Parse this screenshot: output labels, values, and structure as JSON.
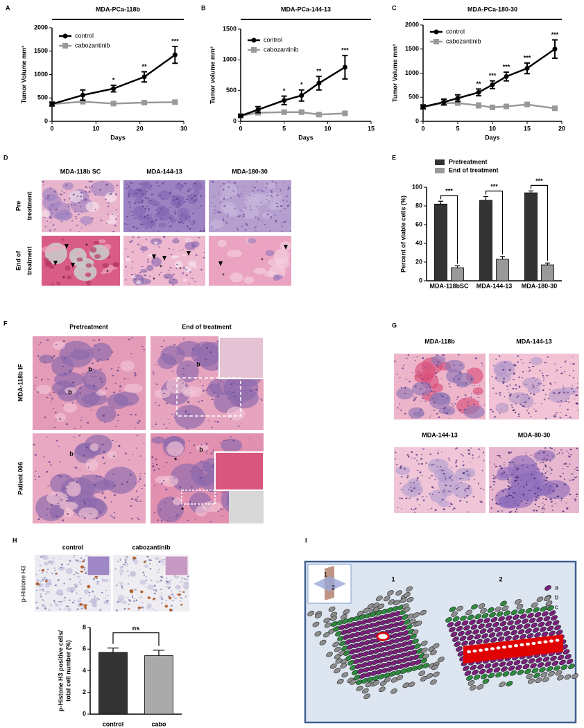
{
  "chart_data": [
    {
      "type": "line",
      "title": "MDA-PCa-118b",
      "xlabel": "Days",
      "ylabel": "Tumor Volume mm³",
      "x": [
        0,
        7,
        14,
        21,
        28
      ],
      "series": [
        {
          "name": "control",
          "color": "#000000",
          "marker": "circle",
          "values": [
            370,
            560,
            700,
            950,
            1420
          ],
          "errors": [
            40,
            110,
            70,
            110,
            180
          ]
        },
        {
          "name": "cabozantinib",
          "color": "#999999",
          "marker": "square",
          "values": [
            370,
            420,
            380,
            400,
            410
          ],
          "errors": [
            20,
            25,
            20,
            20,
            20
          ]
        }
      ],
      "annotations": [
        {
          "x": 14,
          "text": "*"
        },
        {
          "x": 21,
          "text": "**"
        },
        {
          "x": 28,
          "text": "***"
        }
      ],
      "xlim": [
        0,
        30
      ],
      "xticks": [
        0,
        10,
        20,
        30
      ],
      "ylim": [
        0,
        2000
      ],
      "yticks": [
        0,
        500,
        1000,
        1500,
        2000
      ],
      "legend": "upper left"
    },
    {
      "type": "line",
      "title": "MDA-PCa-144-13",
      "xlabel": "Days",
      "ylabel": "Tumor volume mm³",
      "x": [
        0,
        2,
        5,
        7,
        9,
        12
      ],
      "series": [
        {
          "name": "control",
          "color": "#000000",
          "marker": "circle",
          "values": [
            90,
            190,
            340,
            420,
            620,
            880
          ],
          "errors": [
            20,
            50,
            70,
            90,
            110,
            190
          ]
        },
        {
          "name": "cabozantinib",
          "color": "#999999",
          "marker": "square",
          "values": [
            90,
            140,
            150,
            150,
            110,
            130
          ],
          "errors": [
            15,
            20,
            20,
            20,
            25,
            20
          ]
        }
      ],
      "annotations": [
        {
          "x": 5,
          "text": "*"
        },
        {
          "x": 7,
          "text": "*"
        },
        {
          "x": 9,
          "text": "**"
        },
        {
          "x": 12,
          "text": "***"
        }
      ],
      "xlim": [
        0,
        15
      ],
      "xticks": [
        0,
        5,
        10,
        15
      ],
      "ylim": [
        0,
        1500
      ],
      "yticks": [
        0,
        500,
        1000,
        1500
      ],
      "legend": "upper left"
    },
    {
      "type": "line",
      "title": "MDA-PCa-180-30",
      "xlabel": "Days",
      "ylabel": "Tumor Volume mm³",
      "x": [
        0,
        3,
        5,
        8,
        10,
        12,
        15,
        19
      ],
      "series": [
        {
          "name": "control",
          "color": "#000000",
          "marker": "circle",
          "values": [
            300,
            400,
            480,
            600,
            760,
            930,
            1100,
            1500
          ],
          "errors": [
            40,
            60,
            70,
            70,
            80,
            90,
            110,
            190
          ]
        },
        {
          "name": "cabozantinib",
          "color": "#999999",
          "marker": "square",
          "values": [
            300,
            380,
            380,
            330,
            290,
            310,
            350,
            270
          ],
          "errors": [
            30,
            40,
            40,
            50,
            30,
            30,
            40,
            25
          ]
        }
      ],
      "annotations": [
        {
          "x": 8,
          "text": "**"
        },
        {
          "x": 10,
          "text": "***"
        },
        {
          "x": 12,
          "text": "***"
        },
        {
          "x": 15,
          "text": "***"
        },
        {
          "x": 19,
          "text": "***"
        }
      ],
      "xlim": [
        0,
        20
      ],
      "xticks": [
        0,
        5,
        10,
        15,
        20
      ],
      "ylim": [
        0,
        2000
      ],
      "yticks": [
        0,
        500,
        1000,
        1500,
        2000
      ],
      "legend": "upper left"
    },
    {
      "type": "bar",
      "ylabel": "Percent of viable cells (%)",
      "categories": [
        "MDA-118bSC",
        "MDA-144-13",
        "MDA-180-30"
      ],
      "series": [
        {
          "name": "Pretreatment",
          "color": "#333333",
          "values": [
            82,
            86,
            94
          ],
          "errors": [
            3,
            4,
            2
          ]
        },
        {
          "name": "End of treatment",
          "color": "#999999",
          "values": [
            14,
            23,
            17
          ],
          "errors": [
            2,
            3,
            2
          ]
        }
      ],
      "significance": [
        "***",
        "***",
        "***"
      ],
      "ylim": [
        0,
        100
      ],
      "yticks": [
        0,
        20,
        40,
        60,
        80,
        100
      ],
      "legend": "upper left"
    },
    {
      "type": "bar",
      "ylabel": [
        "p-Histone H3 positive cells/",
        "total cell number (%)"
      ],
      "categories": [
        "control",
        "cabo"
      ],
      "values": [
        5.7,
        5.4
      ],
      "errors": [
        0.4,
        0.5
      ],
      "colors": [
        "#333333",
        "#aaaaaa"
      ],
      "significance": [
        "ns"
      ],
      "ylim": [
        0,
        8
      ],
      "yticks": [
        0,
        2,
        4,
        6,
        8
      ]
    }
  ],
  "panel_letters": [
    "A",
    "B",
    "C",
    "D",
    "E",
    "F",
    "G",
    "H",
    "I"
  ],
  "panel_d": {
    "columns": [
      "MDA-118b SC",
      "MDA-144-13",
      "MDA-180-30"
    ],
    "rows": [
      [
        "Pre",
        "treatment"
      ],
      [
        "End of",
        "treatment"
      ]
    ],
    "marks": [
      "*",
      "*",
      "*",
      "*",
      "*",
      "*",
      "*",
      "*"
    ]
  },
  "panel_f": {
    "columns": [
      "Pretreatment",
      "End of treatment"
    ],
    "rows": [
      "MDA-118b IF",
      "Patient 006"
    ],
    "marks": [
      "b",
      "b",
      "b",
      "b",
      "b",
      "*",
      "*"
    ]
  },
  "panel_g": {
    "titles": [
      "MDA-118b",
      "MDA-144-13",
      "MDA-144-13",
      "MDA-80-30"
    ]
  },
  "panel_h": {
    "columns": [
      "control",
      "cabozantinib"
    ],
    "row": "p-Histone H3"
  },
  "panel_i": {
    "inset": [
      "1",
      "2"
    ],
    "sections": [
      "1",
      "2"
    ],
    "legend": [
      "a",
      "b",
      "c"
    ]
  }
}
